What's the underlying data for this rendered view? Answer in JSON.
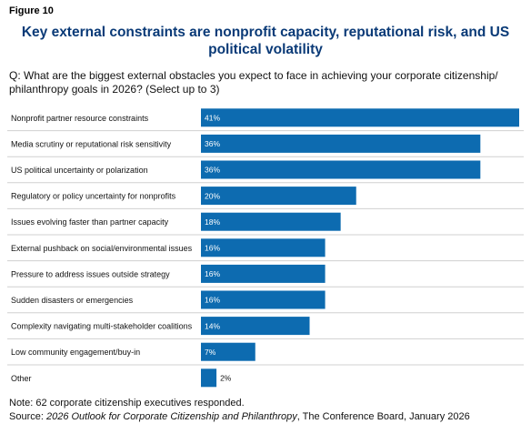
{
  "figure_label": "Figure 10",
  "title": "Key external constraints are nonprofit capacity, reputational risk, and US political volatility",
  "question": "Q: What are the biggest external obstacles you expect to face in achieving your corporate citizenship/ philanthropy goals in 2026? (Select up to 3)",
  "note": "Note: 62 corporate citizenship executives responded.",
  "source": {
    "prefix": "Source: ",
    "publication": "2026 Outlook for Corporate Citizenship and Philanthropy",
    "suffix": ", The Conference Board, January 2026"
  },
  "colors": {
    "bar": "#0d6bb0",
    "title": "#0a3a77",
    "divider": "#d0d0d0"
  },
  "chart_data": {
    "type": "bar",
    "orientation": "horizontal",
    "unit": "%",
    "xlim": [
      0,
      41
    ],
    "categories": [
      "Nonprofit partner resource constraints",
      "Media scrutiny or reputational risk sensitivity",
      "US political uncertainty or polarization",
      "Regulatory or policy uncertainty for nonprofits",
      "Issues evolving faster than partner capacity",
      "External pushback on social/environmental issues",
      "Pressure to address issues outside strategy",
      "Sudden disasters or emergencies",
      "Complexity navigating multi-stakeholder coalitions",
      "Low community engagement/buy-in",
      "Other"
    ],
    "values": [
      41,
      36,
      36,
      20,
      18,
      16,
      16,
      16,
      14,
      7,
      2
    ],
    "value_labels": [
      "41%",
      "36%",
      "36%",
      "20%",
      "18%",
      "16%",
      "16%",
      "16%",
      "14%",
      "7%",
      "2%"
    ]
  }
}
